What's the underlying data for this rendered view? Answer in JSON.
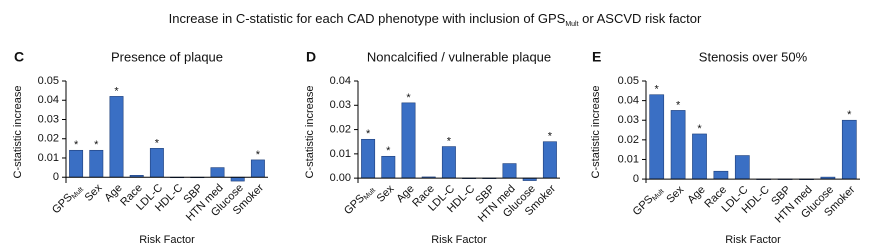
{
  "title": {
    "text": "Increase in C-statistic for each CAD phenotype with inclusion of GPS",
    "subscript": "Mult",
    "text_end": " or ASCVD risk factor"
  },
  "chart_data": [
    {
      "type": "bar",
      "panel": "C",
      "title": "Presence of plaque",
      "ylabel": "C-statistic increase",
      "xlabel": "Risk Factor",
      "color": "#3a6fc4",
      "categories": [
        {
          "text": "GPS",
          "subscript": "Mult"
        },
        "Sex",
        "Age",
        "Race",
        "LDL-C",
        "HDL-C",
        "SBP",
        "HTN med",
        "Glucose",
        "Smoker"
      ],
      "values": [
        0.014,
        0.014,
        0.042,
        0.001,
        0.015,
        0,
        0,
        0.005,
        -0.002,
        0.009
      ],
      "annotations": [
        "*",
        "*",
        "*",
        null,
        "*",
        null,
        null,
        null,
        null,
        "*"
      ],
      "ylim": [
        -0.003,
        0.05
      ],
      "yticks": [
        0,
        0.01,
        0.02,
        0.03,
        0.04,
        0.05
      ]
    },
    {
      "type": "bar",
      "panel": "D",
      "title": "Noncalcified / vulnerable plaque",
      "ylabel": "C-statistic increase",
      "xlabel": "Risk Factor",
      "color": "#3a6fc4",
      "categories": [
        {
          "text": "GPS",
          "subscript": "Mult"
        },
        "Sex",
        "Age",
        "Race",
        "LDL-C",
        "HDL-C",
        "SBP",
        "HTN med",
        "Glucose",
        "Smoker"
      ],
      "values": [
        0.016,
        0.009,
        0.031,
        0.0005,
        0.013,
        0,
        0,
        0.006,
        -0.001,
        0.015
      ],
      "annotations": [
        "*",
        "*",
        "*",
        null,
        "*",
        null,
        null,
        null,
        null,
        "*"
      ],
      "ylim": [
        -0.002,
        0.04
      ],
      "yticks": [
        {
          "value": 0,
          "label": "0.00"
        },
        0.01,
        0.02,
        0.03,
        0.04
      ]
    },
    {
      "type": "bar",
      "panel": "E",
      "title": "Stenosis over 50%",
      "ylabel": "C-statistic increase",
      "xlabel": "Risk Factor",
      "color": "#3a6fc4",
      "categories": [
        {
          "text": "GPS",
          "subscript": "Mult"
        },
        "Sex",
        "Age",
        "Race",
        "LDL-C",
        "HDL-C",
        "SBP",
        "HTN med",
        "Glucose",
        "Smoker"
      ],
      "values": [
        0.043,
        0.035,
        0.023,
        0.004,
        0.012,
        0,
        0,
        -0.0003,
        0.001,
        0.03
      ],
      "annotations": [
        "*",
        "*",
        "*",
        null,
        null,
        null,
        null,
        null,
        null,
        "*"
      ],
      "ylim": [
        -0.002,
        0.05
      ],
      "yticks": [
        0,
        0.01,
        0.02,
        0.03,
        0.04,
        0.05
      ]
    }
  ]
}
